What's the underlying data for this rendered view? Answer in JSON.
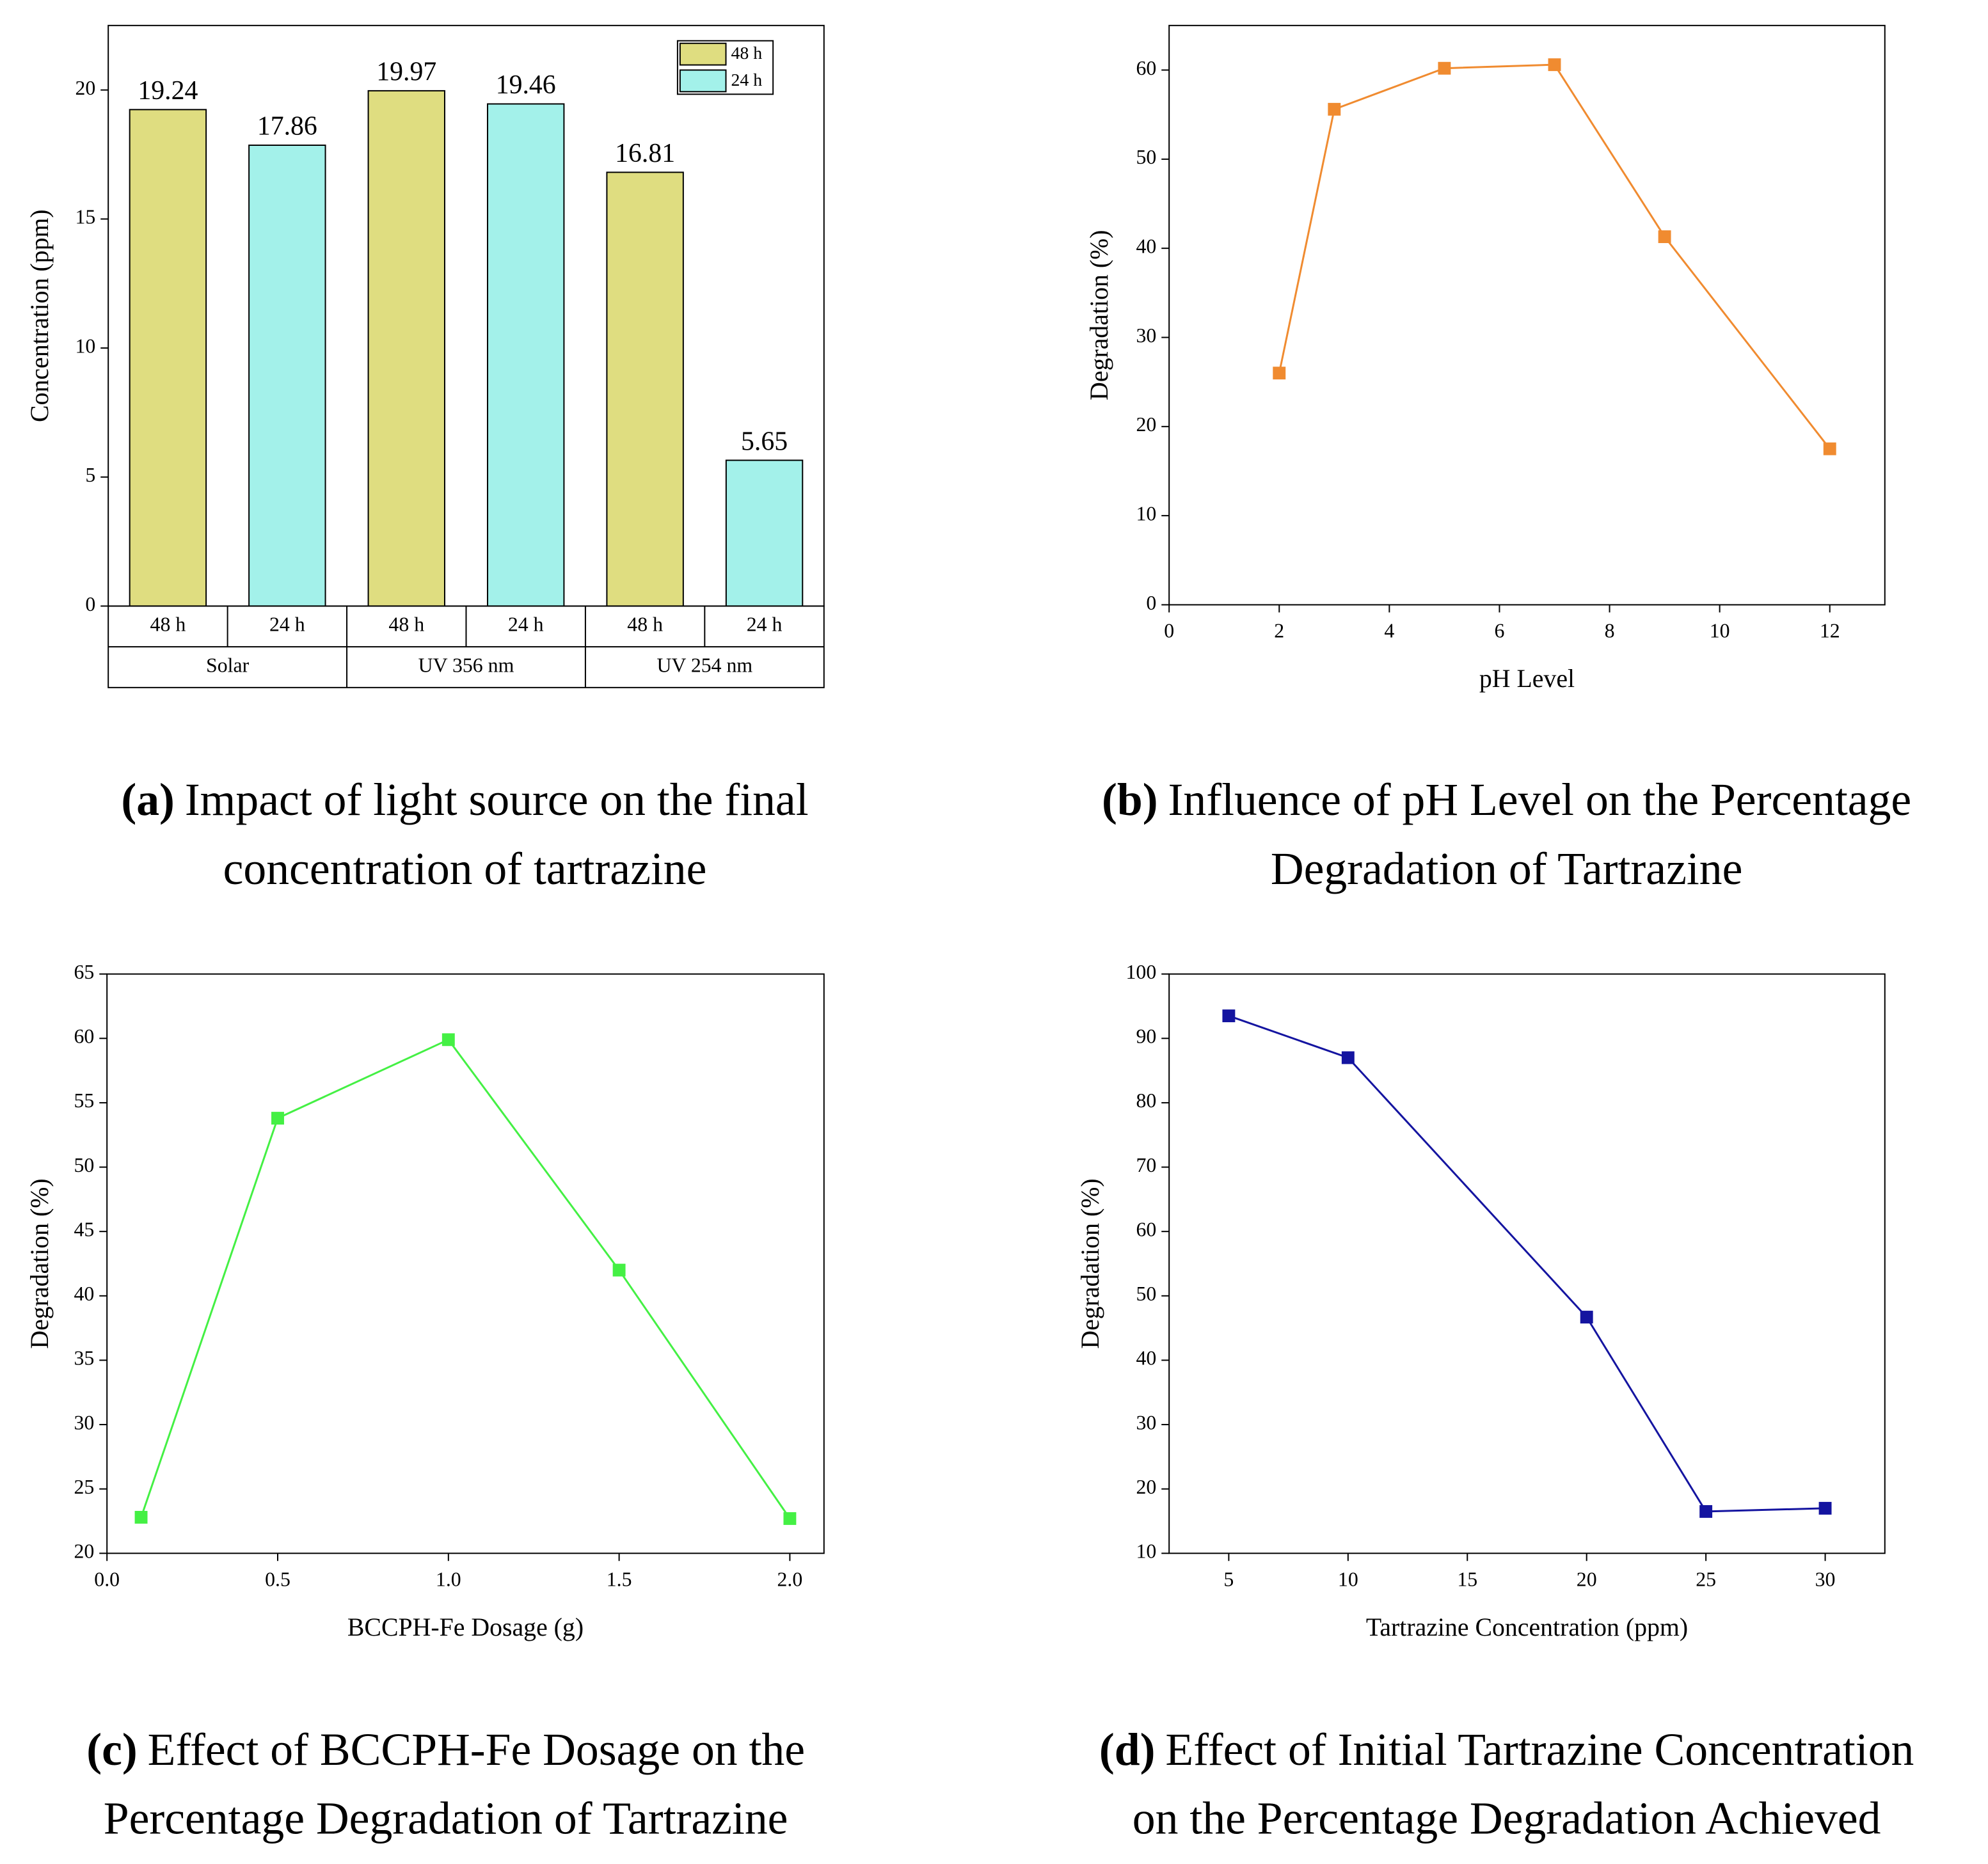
{
  "chart_data": [
    {
      "type": "bar",
      "caption_label": "(a)",
      "caption": [
        "Impact of light source on the final",
        "concentration of tartrazine"
      ],
      "y_label": "Concentration (ppm)",
      "categories": [
        "Solar",
        "UV 356 nm",
        "UV 254 nm"
      ],
      "series": [
        {
          "name": "48 h",
          "color": "#dfdd80",
          "values": [
            19.24,
            19.97,
            16.81
          ]
        },
        {
          "name": "24 h",
          "color": "#a3f1ea",
          "values": [
            17.86,
            19.46,
            5.65
          ]
        }
      ],
      "ylim": [
        0,
        22.5
      ],
      "yticks": [
        0,
        5,
        10,
        15,
        20
      ],
      "legend": "upper right"
    },
    {
      "type": "line",
      "caption_label": "(b)",
      "caption": [
        "Influence of pH Level on the Percentage",
        "Degradation of Tartrazine"
      ],
      "x_label": "pH Level",
      "y_label": "Degradation (%)",
      "x": [
        2,
        3,
        5,
        7,
        9,
        12
      ],
      "series": [
        {
          "color": "#f08b30",
          "values": [
            26,
            55.6,
            60.2,
            60.6,
            41.3,
            17.5
          ]
        }
      ],
      "xlim": [
        0,
        13
      ],
      "xticks": [
        0,
        2,
        4,
        6,
        8,
        10,
        12
      ],
      "ylim": [
        0,
        65
      ],
      "yticks": [
        0,
        10,
        20,
        30,
        40,
        50,
        60
      ]
    },
    {
      "type": "line",
      "caption_label": "(c)",
      "caption": [
        "Effect of BCCPH-Fe Dosage on the",
        "Percentage Degradation of Tartrazine"
      ],
      "x_label": "BCCPH-Fe Dosage (g)",
      "y_label": "Degradation (%)",
      "x": [
        0.1,
        0.5,
        1.0,
        1.5,
        2.0
      ],
      "series": [
        {
          "color": "#44f044",
          "values": [
            22.8,
            53.8,
            59.9,
            42,
            22.7
          ]
        }
      ],
      "xlim": [
        0,
        2.1
      ],
      "xticks": [
        {
          "value": 0,
          "label": "0.0"
        },
        0.5,
        {
          "value": 1,
          "label": "1.0"
        },
        1.5,
        {
          "value": 2,
          "label": "2.0"
        }
      ],
      "ylim": [
        20,
        65
      ],
      "yticks": [
        20,
        25,
        30,
        35,
        40,
        45,
        50,
        55,
        60,
        65
      ]
    },
    {
      "type": "line",
      "caption_label": "(d)",
      "caption": [
        "Effect of Initial Tartrazine Concentration",
        "on the Percentage Degradation Achieved"
      ],
      "x_label": "Tartrazine Concentration (ppm)",
      "y_label": "Degradation (%)",
      "x": [
        5,
        10,
        20,
        25,
        30
      ],
      "series": [
        {
          "color": "#1414a0",
          "values": [
            93.5,
            87,
            46.7,
            16.5,
            17
          ]
        }
      ],
      "xlim": [
        2.5,
        32.5
      ],
      "xticks": [
        5,
        10,
        15,
        20,
        25,
        30
      ],
      "ylim": [
        10,
        100
      ],
      "yticks": [
        10,
        20,
        30,
        40,
        50,
        60,
        70,
        80,
        90,
        100
      ]
    }
  ]
}
